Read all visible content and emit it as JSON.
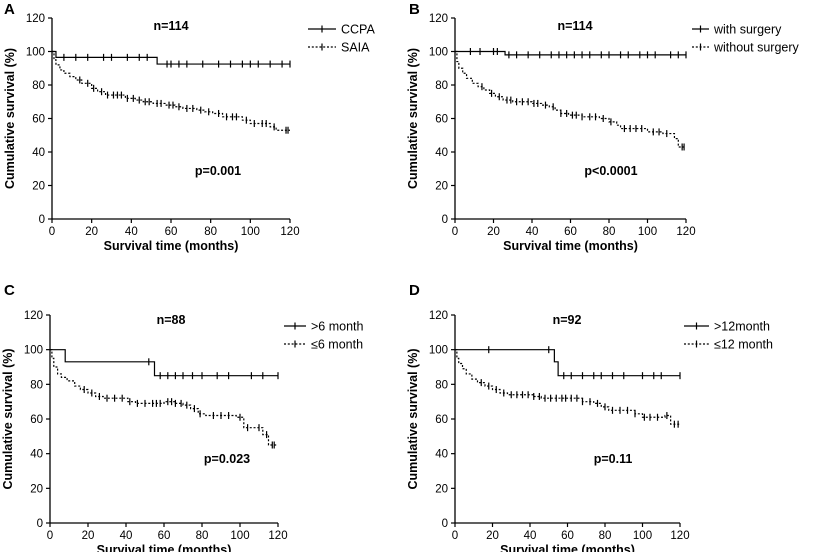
{
  "chart_data": [
    {
      "panel": "A",
      "type": "line",
      "subtype": "kaplan-meier",
      "title": "n=114",
      "annotation": "p=0.001",
      "xlabel": "Survival time (months)",
      "ylabel": "Cumulative survival (%)",
      "xlim": [
        0,
        120
      ],
      "ylim": [
        0,
        120
      ],
      "xticks": [
        0,
        20,
        40,
        60,
        80,
        100,
        120
      ],
      "yticks": [
        0,
        20,
        40,
        60,
        80,
        100,
        120
      ],
      "legend": "top-right",
      "series": [
        {
          "name": "CCPA",
          "style": "solid",
          "steps": [
            [
              0,
              100
            ],
            [
              2,
              96.5
            ],
            [
              53,
              92.5
            ],
            [
              120,
              92.5
            ]
          ],
          "censored": [
            6,
            12,
            18,
            26,
            30,
            38,
            44,
            48,
            58,
            60,
            64,
            68,
            76,
            84,
            90,
            96,
            100,
            104,
            110,
            116,
            120
          ]
        },
        {
          "name": "SAIA",
          "style": "dotted",
          "steps": [
            [
              0,
              100
            ],
            [
              1,
              95
            ],
            [
              2,
              92
            ],
            [
              4,
              89
            ],
            [
              6,
              87
            ],
            [
              9,
              85
            ],
            [
              12,
              83
            ],
            [
              15,
              81
            ],
            [
              20,
              78
            ],
            [
              23,
              76
            ],
            [
              27,
              74
            ],
            [
              37,
              72
            ],
            [
              42,
              71
            ],
            [
              46,
              70
            ],
            [
              51,
              69
            ],
            [
              57,
              68
            ],
            [
              62,
              67
            ],
            [
              66,
              66
            ],
            [
              73,
              65
            ],
            [
              77,
              64
            ],
            [
              81,
              63
            ],
            [
              86,
              61
            ],
            [
              96,
              59
            ],
            [
              100,
              57
            ],
            [
              110,
              55
            ],
            [
              113,
              53
            ],
            [
              120,
              53
            ]
          ],
          "censored": [
            14,
            18,
            21,
            25,
            28,
            31,
            33,
            35,
            38,
            41,
            44,
            47,
            49,
            53,
            55,
            59,
            61,
            64,
            68,
            71,
            75,
            79,
            84,
            88,
            91,
            93,
            98,
            102,
            106,
            108,
            112,
            118,
            119
          ]
        }
      ]
    },
    {
      "panel": "B",
      "type": "line",
      "subtype": "kaplan-meier",
      "title": "n=114",
      "annotation": "p<0.0001",
      "xlabel": "Survival time (months)",
      "ylabel": "Cumulative survival (%)",
      "xlim": [
        0,
        120
      ],
      "ylim": [
        0,
        120
      ],
      "xticks": [
        0,
        20,
        40,
        60,
        80,
        100,
        120
      ],
      "yticks": [
        0,
        20,
        40,
        60,
        80,
        100,
        120
      ],
      "legend": "top-right",
      "series": [
        {
          "name": "with surgery",
          "style": "solid",
          "steps": [
            [
              0,
              100
            ],
            [
              26,
              98
            ],
            [
              120,
              98
            ]
          ],
          "censored": [
            8,
            13,
            20,
            22,
            28,
            32,
            38,
            44,
            50,
            54,
            58,
            62,
            66,
            70,
            76,
            80,
            86,
            90,
            96,
            100,
            104,
            112,
            116,
            120
          ]
        },
        {
          "name": "without surgery",
          "style": "dotted",
          "steps": [
            [
              0,
              100
            ],
            [
              1,
              94
            ],
            [
              2,
              90
            ],
            [
              4,
              87
            ],
            [
              6,
              84
            ],
            [
              9,
              81
            ],
            [
              12,
              79
            ],
            [
              15,
              77
            ],
            [
              18,
              75
            ],
            [
              21,
              73
            ],
            [
              25,
              71
            ],
            [
              30,
              70
            ],
            [
              40,
              69
            ],
            [
              45,
              68
            ],
            [
              49,
              67
            ],
            [
              52,
              65
            ],
            [
              55,
              63
            ],
            [
              59,
              62
            ],
            [
              66,
              61
            ],
            [
              75,
              60
            ],
            [
              80,
              58
            ],
            [
              84,
              56
            ],
            [
              86,
              54
            ],
            [
              97,
              54
            ],
            [
              100,
              52
            ],
            [
              108,
              51
            ],
            [
              114,
              48
            ],
            [
              116,
              43
            ],
            [
              120,
              43
            ]
          ],
          "censored": [
            14,
            19,
            23,
            27,
            29,
            32,
            35,
            38,
            41,
            43,
            47,
            51,
            55,
            58,
            61,
            63,
            66,
            70,
            73,
            77,
            81,
            88,
            91,
            94,
            97,
            103,
            106,
            110,
            118,
            119
          ]
        }
      ]
    },
    {
      "panel": "C",
      "type": "line",
      "subtype": "kaplan-meier",
      "title": "n=88",
      "annotation": "p=0.023",
      "xlabel": "Survival time (months)",
      "ylabel": "Cumulative survival (%)",
      "xlim": [
        0,
        120
      ],
      "ylim": [
        0,
        120
      ],
      "xticks": [
        0,
        20,
        40,
        60,
        80,
        100,
        120
      ],
      "yticks": [
        0,
        20,
        40,
        60,
        80,
        100,
        120
      ],
      "legend": "top-right",
      "series": [
        {
          "name": ">6 month",
          "style": "solid",
          "steps": [
            [
              0,
              100
            ],
            [
              8,
              93
            ],
            [
              53,
              93
            ],
            [
              55,
              85
            ],
            [
              120,
              85
            ]
          ],
          "censored": [
            52,
            58,
            62,
            66,
            70,
            75,
            80,
            88,
            94,
            106,
            112,
            120
          ]
        },
        {
          "name": "≤6 month",
          "style": "dotted",
          "steps": [
            [
              0,
              100
            ],
            [
              1,
              95
            ],
            [
              2,
              90
            ],
            [
              4,
              86
            ],
            [
              6,
              84
            ],
            [
              9,
              82
            ],
            [
              13,
              79
            ],
            [
              16,
              77
            ],
            [
              20,
              75
            ],
            [
              24,
              73
            ],
            [
              28,
              72
            ],
            [
              41,
              70
            ],
            [
              45,
              69
            ],
            [
              60,
              70
            ],
            [
              66,
              69
            ],
            [
              70,
              68
            ],
            [
              74,
              66
            ],
            [
              78,
              63
            ],
            [
              82,
              62
            ],
            [
              98,
              61
            ],
            [
              102,
              55
            ],
            [
              112,
              51
            ],
            [
              115,
              45
            ],
            [
              120,
              45
            ]
          ],
          "censored": [
            18,
            22,
            26,
            30,
            34,
            38,
            42,
            46,
            50,
            54,
            56,
            58,
            62,
            64,
            66,
            69,
            72,
            76,
            79,
            86,
            90,
            94,
            100,
            104,
            110,
            114,
            117,
            118
          ]
        }
      ]
    },
    {
      "panel": "D",
      "type": "line",
      "subtype": "kaplan-meier",
      "title": "n=92",
      "annotation": "p=0.11",
      "xlabel": "Survival time (months)",
      "ylabel": "Cumulative survival (%)",
      "xlim": [
        0,
        120
      ],
      "ylim": [
        0,
        120
      ],
      "xticks": [
        0,
        20,
        40,
        60,
        80,
        100,
        120
      ],
      "yticks": [
        0,
        20,
        40,
        60,
        80,
        100,
        120
      ],
      "legend": "top-right",
      "series": [
        {
          "name": ">12month",
          "style": "solid",
          "steps": [
            [
              0,
              100
            ],
            [
              53,
              93
            ],
            [
              55,
              85
            ],
            [
              120,
              85
            ]
          ],
          "censored": [
            18,
            50,
            58,
            62,
            68,
            74,
            78,
            84,
            90,
            100,
            106,
            110,
            120
          ]
        },
        {
          "name": "≤12 month",
          "style": "dotted",
          "steps": [
            [
              0,
              100
            ],
            [
              1,
              95
            ],
            [
              2,
              92
            ],
            [
              4,
              89
            ],
            [
              6,
              86
            ],
            [
              9,
              83
            ],
            [
              12,
              81
            ],
            [
              16,
              79
            ],
            [
              20,
              77
            ],
            [
              24,
              75
            ],
            [
              28,
              74
            ],
            [
              42,
              73
            ],
            [
              46,
              72
            ],
            [
              68,
              70
            ],
            [
              74,
              69
            ],
            [
              78,
              67
            ],
            [
              82,
              65
            ],
            [
              96,
              63
            ],
            [
              100,
              61
            ],
            [
              112,
              62
            ],
            [
              115,
              57
            ],
            [
              120,
              57
            ]
          ],
          "censored": [
            14,
            18,
            22,
            26,
            30,
            33,
            36,
            39,
            42,
            45,
            48,
            51,
            54,
            57,
            59,
            62,
            65,
            68,
            72,
            76,
            80,
            84,
            88,
            92,
            96,
            101,
            104,
            108,
            113,
            117,
            119
          ]
        }
      ]
    }
  ]
}
